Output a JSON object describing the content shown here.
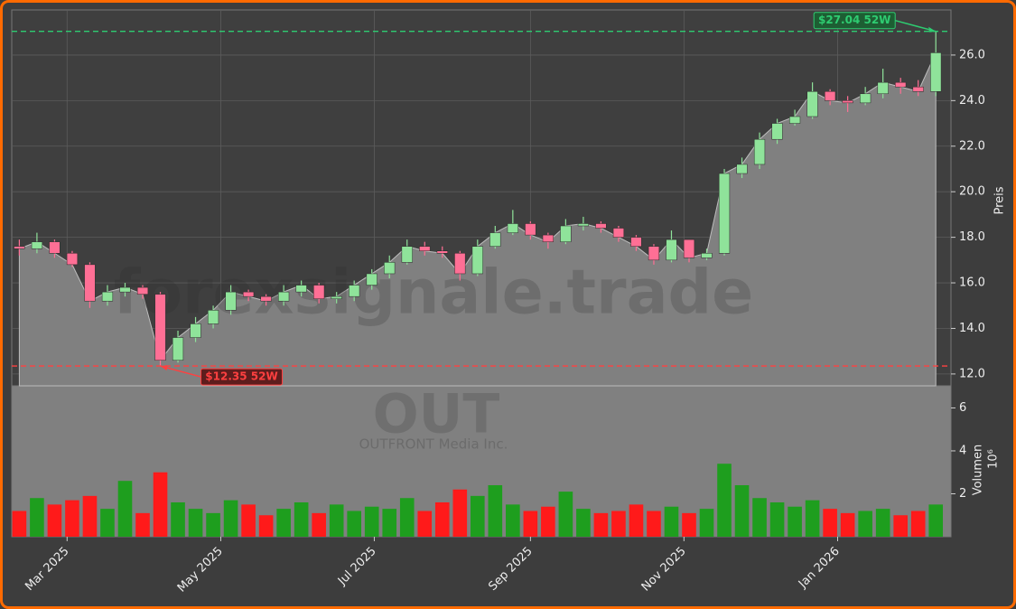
{
  "chart_data": [
    {
      "type": "candlestick",
      "y_label": "Preis",
      "watermark": "forexsignale.trade",
      "categories": [
        null,
        null,
        null,
        null,
        null,
        null,
        null,
        null,
        null,
        null,
        null,
        null,
        null,
        null,
        null,
        null,
        null,
        null,
        null,
        null,
        null,
        null,
        null,
        null,
        null,
        null,
        null,
        null,
        null,
        null,
        null,
        null,
        null,
        null,
        null,
        null,
        null,
        null,
        null,
        null,
        null,
        null,
        null,
        null,
        null,
        null,
        null,
        null,
        null,
        null,
        null,
        null,
        null
      ],
      "open": [
        17.6,
        17.5,
        17.8,
        17.3,
        16.8,
        15.2,
        15.6,
        15.8,
        15.5,
        12.6,
        13.6,
        14.2,
        14.8,
        15.6,
        15.4,
        15.2,
        15.6,
        15.9,
        15.3,
        15.4,
        15.9,
        16.4,
        16.9,
        17.6,
        17.4,
        17.3,
        16.4,
        17.6,
        18.2,
        18.6,
        18.1,
        17.8,
        18.5,
        18.6,
        18.4,
        18.0,
        17.6,
        17.0,
        17.9,
        17.1,
        17.3,
        20.8,
        21.2,
        22.3,
        23.0,
        23.3,
        24.4,
        24.0,
        23.9,
        24.3,
        24.8,
        24.6,
        24.4
      ],
      "high": [
        17.9,
        18.2,
        17.9,
        17.4,
        16.9,
        15.9,
        16.0,
        15.9,
        15.6,
        13.9,
        14.5,
        15.0,
        15.9,
        15.7,
        15.5,
        15.9,
        16.1,
        16.0,
        15.6,
        16.1,
        16.6,
        17.2,
        17.9,
        17.8,
        17.6,
        17.4,
        17.9,
        18.5,
        19.2,
        18.7,
        18.2,
        18.8,
        18.9,
        18.7,
        18.5,
        18.1,
        17.7,
        18.3,
        17.9,
        17.5,
        21.0,
        21.5,
        22.6,
        23.2,
        23.6,
        24.8,
        24.5,
        24.2,
        24.6,
        25.4,
        25.0,
        24.9,
        27.04
      ],
      "low": [
        17.2,
        17.3,
        17.1,
        16.7,
        14.9,
        15.0,
        15.4,
        15.3,
        12.35,
        12.5,
        13.4,
        14.0,
        14.6,
        15.2,
        15.0,
        15.0,
        15.4,
        15.1,
        15.1,
        15.2,
        15.7,
        16.2,
        16.8,
        17.2,
        17.1,
        16.1,
        16.3,
        17.5,
        18.1,
        17.9,
        17.5,
        17.7,
        18.3,
        18.2,
        17.8,
        17.4,
        16.8,
        16.9,
        16.9,
        17.0,
        17.2,
        20.6,
        21.0,
        22.1,
        22.9,
        23.2,
        23.8,
        23.5,
        23.8,
        24.1,
        24.3,
        24.2,
        24.2
      ],
      "close": [
        17.5,
        17.8,
        17.3,
        16.8,
        15.2,
        15.6,
        15.8,
        15.5,
        12.6,
        13.6,
        14.2,
        14.8,
        15.6,
        15.4,
        15.2,
        15.6,
        15.9,
        15.3,
        15.4,
        15.9,
        16.4,
        16.9,
        17.6,
        17.4,
        17.3,
        16.4,
        17.6,
        18.2,
        18.6,
        18.1,
        17.8,
        18.5,
        18.6,
        18.4,
        18.0,
        17.6,
        17.0,
        17.9,
        17.1,
        17.3,
        20.8,
        21.2,
        22.3,
        23.0,
        23.3,
        24.4,
        24.0,
        23.9,
        24.3,
        24.8,
        24.6,
        24.4,
        26.1
      ],
      "up_color": "#8fe39a",
      "down_color": "#ff6f95",
      "area_color": "#808080",
      "xlim": [
        -0.43,
        52.86
      ],
      "xticks": [
        {
          "value": 2.71,
          "label": "Mar 2025"
        },
        {
          "value": 11.43,
          "label": "May 2025"
        },
        {
          "value": 20.14,
          "label": "Jul 2025"
        },
        {
          "value": 29.0,
          "label": "Sep 2025"
        },
        {
          "value": 37.71,
          "label": "Nov 2025"
        },
        {
          "value": 46.43,
          "label": "Jan 2026"
        }
      ],
      "ylim": [
        11.48,
        27.98
      ],
      "yticks": [
        {
          "value": 12,
          "label": "12.0"
        },
        {
          "value": 14,
          "label": "14.0"
        },
        {
          "value": 16,
          "label": "16.0"
        },
        {
          "value": 18,
          "label": "18.0"
        },
        {
          "value": 20,
          "label": "20.0"
        },
        {
          "value": 22,
          "label": "22.0"
        },
        {
          "value": 24,
          "label": "24.0"
        },
        {
          "value": 26,
          "label": "26.0"
        }
      ],
      "grid": true,
      "annotations": [
        {
          "label": "$27.04 52W",
          "value": 27.04,
          "color": "#2ecc71",
          "box": "#1d5e33"
        },
        {
          "label": "$12.35 52W",
          "value": 12.35,
          "color": "#ff4040",
          "box": "#5e1d1d"
        }
      ]
    },
    {
      "type": "bar",
      "y_label": "Volumen",
      "scale_label": "10⁶",
      "ticker": "OUT",
      "company": "OUTFRONT Media Inc.",
      "values": [
        1.2,
        1.8,
        1.5,
        1.7,
        1.9,
        1.3,
        2.6,
        1.1,
        3.0,
        1.6,
        1.3,
        1.1,
        1.7,
        1.5,
        1.0,
        1.3,
        1.6,
        1.1,
        1.5,
        1.2,
        1.4,
        1.3,
        1.8,
        1.2,
        1.6,
        2.2,
        1.9,
        2.4,
        1.5,
        1.2,
        1.4,
        2.1,
        1.3,
        1.1,
        1.2,
        1.5,
        1.2,
        1.4,
        1.1,
        1.3,
        3.4,
        2.4,
        1.8,
        1.6,
        1.4,
        1.7,
        1.3,
        1.1,
        1.2,
        1.3,
        1.0,
        1.2,
        1.5
      ],
      "up_color": "#1e9e1e",
      "down_color": "#ff1a1a",
      "ylim": [
        0,
        7.03
      ],
      "yticks": [
        2,
        4,
        6
      ]
    }
  ]
}
